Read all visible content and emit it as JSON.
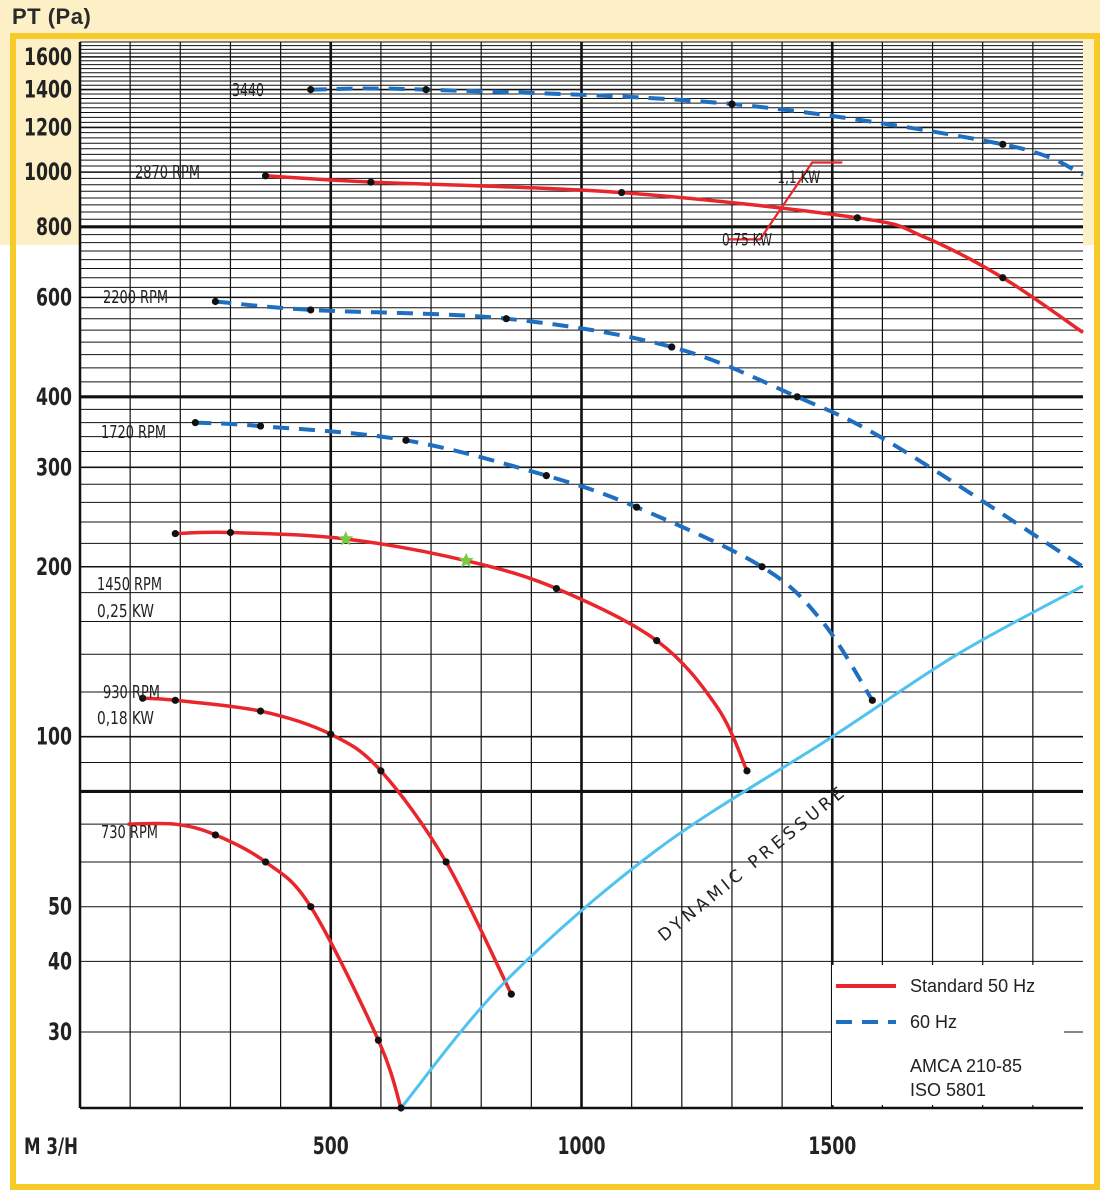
{
  "chart_data": {
    "type": "line",
    "ylabel": "PT (Pa)",
    "xlabel": "M 3/H",
    "x_ticks": [
      500,
      1000,
      1500
    ],
    "y_ticks": [
      30,
      40,
      50,
      100,
      200,
      300,
      400,
      600,
      800,
      1000,
      1200,
      1400,
      1600
    ],
    "yscale": "log",
    "xlim": [
      0,
      2000
    ],
    "ylim": [
      22,
      1700
    ],
    "grid": true,
    "dynamic_pressure_label": "DYNAMIC PRESSURE",
    "power_labels": [
      {
        "text": "1,1 KW",
        "x": 1470,
        "y": 980
      },
      {
        "text": "0,75 KW",
        "x": 1360,
        "y": 760
      }
    ],
    "series": [
      {
        "name": "3440",
        "style": "60 Hz",
        "points": [
          [
            460,
            1400
          ],
          [
            690,
            1400
          ],
          [
            1300,
            1320
          ],
          [
            1840,
            1120
          ],
          [
            2000,
            990
          ]
        ],
        "markers": [
          [
            460,
            1400
          ],
          [
            690,
            1400
          ],
          [
            1300,
            1320
          ],
          [
            1840,
            1120
          ]
        ]
      },
      {
        "name": "2870 RPM",
        "style": "Standard 50 Hz",
        "points": [
          [
            370,
            985
          ],
          [
            580,
            960
          ],
          [
            1080,
            920
          ],
          [
            1550,
            830
          ],
          [
            1680,
            770
          ],
          [
            1840,
            650
          ],
          [
            2000,
            520
          ]
        ],
        "markers": [
          [
            370,
            985
          ],
          [
            580,
            960
          ],
          [
            1080,
            920
          ],
          [
            1550,
            830
          ],
          [
            1840,
            650
          ]
        ]
      },
      {
        "name": "2200 RPM",
        "style": "60 Hz",
        "points": [
          [
            270,
            590
          ],
          [
            460,
            570
          ],
          [
            850,
            550
          ],
          [
            1180,
            490
          ],
          [
            1430,
            400
          ],
          [
            1620,
            330
          ],
          [
            2000,
            200
          ]
        ],
        "markers": [
          [
            270,
            590
          ],
          [
            460,
            570
          ],
          [
            850,
            550
          ],
          [
            1180,
            490
          ],
          [
            1430,
            400
          ]
        ]
      },
      {
        "name": "1720 RPM",
        "style": "60 Hz",
        "points": [
          [
            230,
            360
          ],
          [
            360,
            355
          ],
          [
            650,
            335
          ],
          [
            930,
            290
          ],
          [
            1110,
            255
          ],
          [
            1360,
            200
          ],
          [
            1480,
            160
          ],
          [
            1580,
            116
          ]
        ],
        "markers": [
          [
            230,
            360
          ],
          [
            360,
            355
          ],
          [
            650,
            335
          ],
          [
            930,
            290
          ],
          [
            1110,
            255
          ],
          [
            1360,
            200
          ],
          [
            1580,
            116
          ]
        ]
      },
      {
        "name": "1450 RPM",
        "sublabel": "0,25 KW",
        "style": "Standard 50 Hz",
        "points": [
          [
            190,
            229
          ],
          [
            300,
            230
          ],
          [
            530,
            224
          ],
          [
            770,
            205
          ],
          [
            950,
            183
          ],
          [
            1150,
            148
          ],
          [
            1270,
            113
          ],
          [
            1330,
            87
          ]
        ],
        "markers": [
          [
            190,
            229
          ],
          [
            300,
            230
          ],
          [
            950,
            183
          ],
          [
            1150,
            148
          ],
          [
            1330,
            87
          ]
        ],
        "star_markers": [
          [
            530,
            224
          ],
          [
            770,
            205
          ]
        ]
      },
      {
        "name": "930 RPM",
        "sublabel": "0,18 KW",
        "style": "Standard 50 Hz",
        "points": [
          [
            125,
            117
          ],
          [
            190,
            116
          ],
          [
            360,
            111
          ],
          [
            500,
            101
          ],
          [
            600,
            87
          ],
          [
            730,
            60
          ],
          [
            860,
            35
          ]
        ],
        "markers": [
          [
            125,
            117
          ],
          [
            190,
            116
          ],
          [
            360,
            111
          ],
          [
            500,
            101
          ],
          [
            600,
            87
          ],
          [
            730,
            60
          ],
          [
            860,
            35
          ]
        ]
      },
      {
        "name": "730 RPM",
        "style": "Standard 50 Hz",
        "points": [
          [
            95,
            70
          ],
          [
            190,
            70
          ],
          [
            270,
            67
          ],
          [
            370,
            60
          ],
          [
            460,
            50
          ],
          [
            595,
            29
          ],
          [
            640,
            22
          ]
        ],
        "markers": [
          [
            270,
            67
          ],
          [
            370,
            60
          ],
          [
            460,
            50
          ],
          [
            595,
            29
          ],
          [
            640,
            22
          ]
        ]
      },
      {
        "name": "DYNAMIC PRESSURE",
        "style": "dynamic",
        "points": [
          [
            640,
            22
          ],
          [
            850,
            37
          ],
          [
            1150,
            63
          ],
          [
            1500,
            100
          ],
          [
            1750,
            140
          ],
          [
            2000,
            185
          ]
        ],
        "markers": []
      }
    ],
    "legend": {
      "position": "bottom-right",
      "entries": [
        {
          "label": "Standard 50 Hz",
          "style": "Standard 50 Hz"
        },
        {
          "label": "60 Hz",
          "style": "60 Hz"
        }
      ],
      "notes": [
        "AMCA 210-85",
        "ISO 5801"
      ]
    },
    "colors": {
      "Standard 50 Hz": "#e8262b",
      "60 Hz": "#1e6fc0",
      "dynamic": "#4fc3ee",
      "frame": "#f7c929",
      "band": "#fdf0c6",
      "star": "#7ac943"
    }
  }
}
